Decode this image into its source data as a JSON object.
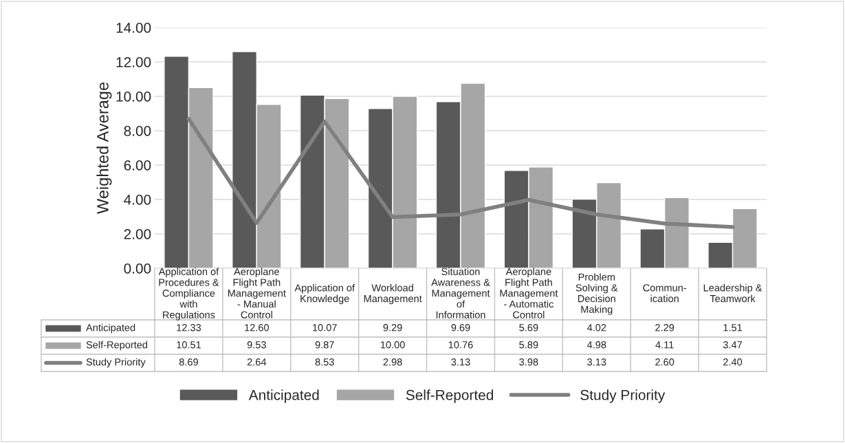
{
  "chart_data": {
    "type": "bar",
    "ylabel": "Weighted Average",
    "categories": [
      "Application of\nProcedures &\nCompliance\nwith\nRegulations",
      "Aeroplane\nFlight Path\nManagement\n- Manual\nControl",
      "Application of\nKnowledge",
      "Workload\nManagement",
      "Situation\nAwareness &\nManagement\nof\nInformation",
      "Aeroplane\nFlight Path\nManagement\n- Automatic\nControl",
      "Problem\nSolving &\nDecision\nMaking",
      "Commun-\nication",
      "Leadership &\nTeamwork"
    ],
    "series": [
      {
        "name": "Anticipated",
        "color": "#595959",
        "values": [
          12.33,
          12.6,
          10.07,
          9.29,
          9.69,
          5.69,
          4.02,
          2.29,
          1.51
        ],
        "value_labels": [
          "12.33",
          "12.60",
          "10.07",
          "9.29",
          "9.69",
          "5.69",
          "4.02",
          "2.29",
          "1.51"
        ]
      },
      {
        "name": "Self-Reported",
        "color": "#a6a6a6",
        "values": [
          10.51,
          9.53,
          9.87,
          10.0,
          10.76,
          5.89,
          4.98,
          4.11,
          3.47
        ],
        "value_labels": [
          "10.51",
          "9.53",
          "9.87",
          "10.00",
          "10.76",
          "5.89",
          "4.98",
          "4.11",
          "3.47"
        ]
      },
      {
        "name": "Study Priority",
        "type": "line",
        "color": "#808080",
        "values": [
          8.69,
          2.64,
          8.53,
          2.98,
          3.13,
          3.98,
          3.13,
          2.6,
          2.4
        ],
        "value_labels": [
          "8.69",
          "2.64",
          "8.53",
          "2.98",
          "3.13",
          "3.98",
          "3.13",
          "2.60",
          "2.40"
        ]
      }
    ],
    "ylim": [
      0,
      14
    ],
    "yticks": [
      {
        "value": 0,
        "label": "0.00"
      },
      {
        "value": 2,
        "label": "2.00"
      },
      {
        "value": 4,
        "label": "4.00"
      },
      {
        "value": 6,
        "label": "6.00"
      },
      {
        "value": 8,
        "label": "8.00"
      },
      {
        "value": 10,
        "label": "10.00"
      },
      {
        "value": 12,
        "label": "12.00"
      },
      {
        "value": 14,
        "label": "14.00"
      }
    ],
    "grid": "y",
    "legend": "bottom",
    "marker": "none",
    "line_style": "solid"
  }
}
